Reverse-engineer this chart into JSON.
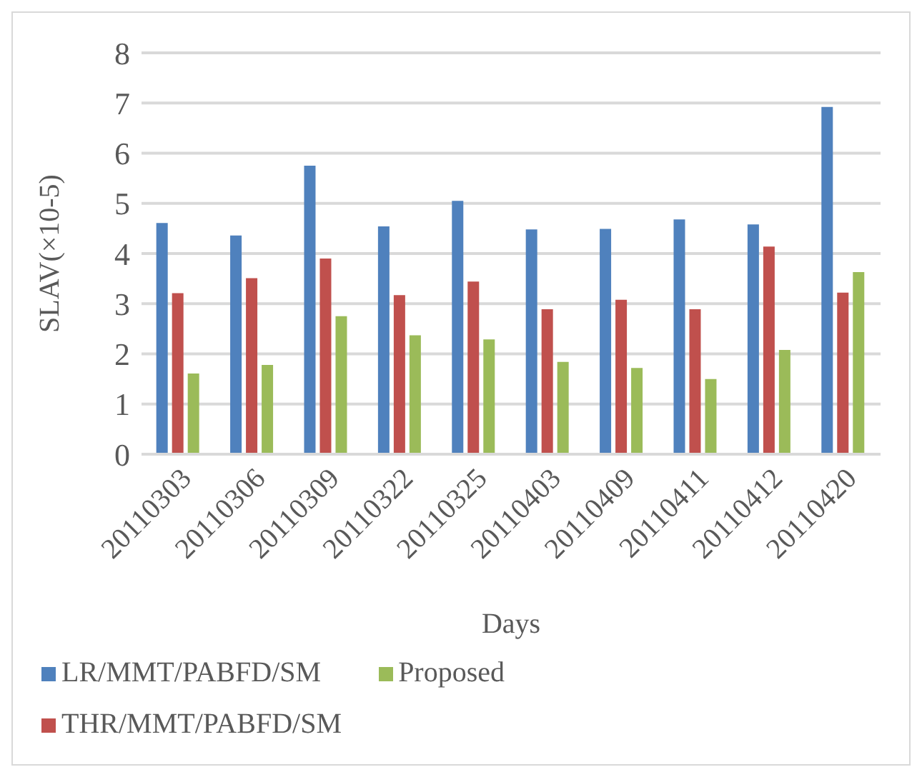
{
  "chart_data": {
    "type": "bar",
    "ylabel": "SLAV(×10-5)",
    "xlabel": "Days",
    "categories": [
      "20110303",
      "20110306",
      "20110309",
      "20110322",
      "20110325",
      "20110403",
      "20110409",
      "20110411",
      "20110412",
      "20110420"
    ],
    "series": [
      {
        "name": "LR/MMT/PABFD/SM",
        "color": "#4f81bd",
        "values": [
          4.61,
          4.36,
          5.75,
          4.54,
          5.05,
          4.48,
          4.49,
          4.68,
          4.58,
          6.92
        ]
      },
      {
        "name": "THR/MMT/PABFD/SM",
        "color": "#c0504d",
        "values": [
          3.21,
          3.51,
          3.9,
          3.17,
          3.44,
          2.89,
          3.08,
          2.89,
          4.14,
          3.22
        ]
      },
      {
        "name": "Proposed",
        "color": "#9bbb59",
        "values": [
          1.61,
          1.78,
          2.75,
          2.37,
          2.29,
          1.84,
          1.72,
          1.5,
          2.08,
          3.63
        ]
      }
    ],
    "ylim": [
      0,
      8
    ],
    "yticks": [
      0,
      1,
      2,
      3,
      4,
      5,
      6,
      7,
      8
    ],
    "grid": "y",
    "legend": "bottom"
  }
}
